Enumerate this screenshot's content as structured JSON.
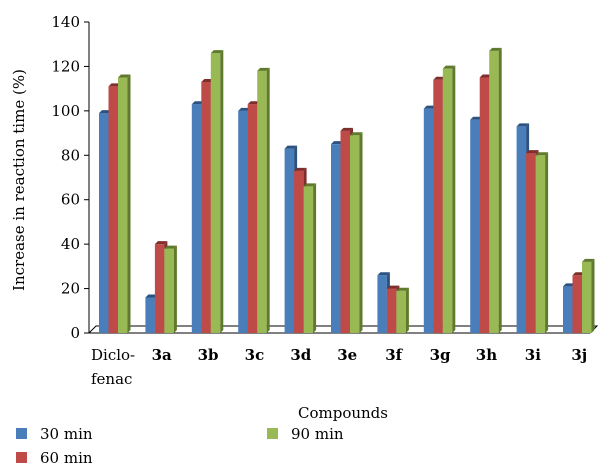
{
  "chart_data": {
    "type": "bar",
    "categories": [
      {
        "line1": "Diclo-",
        "line2": "fenac",
        "bold": false
      },
      {
        "line1": "3a",
        "line2": "",
        "bold": true
      },
      {
        "line1": "3b",
        "line2": "",
        "bold": true
      },
      {
        "line1": "3c",
        "line2": "",
        "bold": true
      },
      {
        "line1": "3d",
        "line2": "",
        "bold": true
      },
      {
        "line1": "3e",
        "line2": "",
        "bold": true
      },
      {
        "line1": "3f",
        "line2": "",
        "bold": true
      },
      {
        "line1": "3g",
        "line2": "",
        "bold": true
      },
      {
        "line1": "3h",
        "line2": "",
        "bold": true
      },
      {
        "line1": "3i",
        "line2": "",
        "bold": true
      },
      {
        "line1": "3j",
        "line2": "",
        "bold": true
      }
    ],
    "series": [
      {
        "name": "30 min",
        "color": "#4a7ebb",
        "dark": "#2c5282",
        "values": [
          99,
          16,
          103,
          100,
          83,
          85,
          26,
          101,
          96,
          93,
          21
        ]
      },
      {
        "name": "60 min",
        "color": "#be4b48",
        "dark": "#7f2e2b",
        "values": [
          111,
          40,
          113,
          103,
          73,
          91,
          20,
          114,
          115,
          81,
          26
        ]
      },
      {
        "name": "90 min",
        "color": "#98b954",
        "dark": "#5f7a2c",
        "values": [
          115,
          38,
          126,
          118,
          66,
          89,
          19,
          119,
          127,
          80,
          32
        ]
      }
    ],
    "xlabel": "Compounds",
    "ylabel": "Increase in reaction time (%)",
    "ylim": [
      0,
      140
    ],
    "yticks": [
      "0",
      "20",
      "40",
      "60",
      "80",
      "100",
      "120",
      "140"
    ],
    "grid": false,
    "legend_position": "bottom-left"
  }
}
